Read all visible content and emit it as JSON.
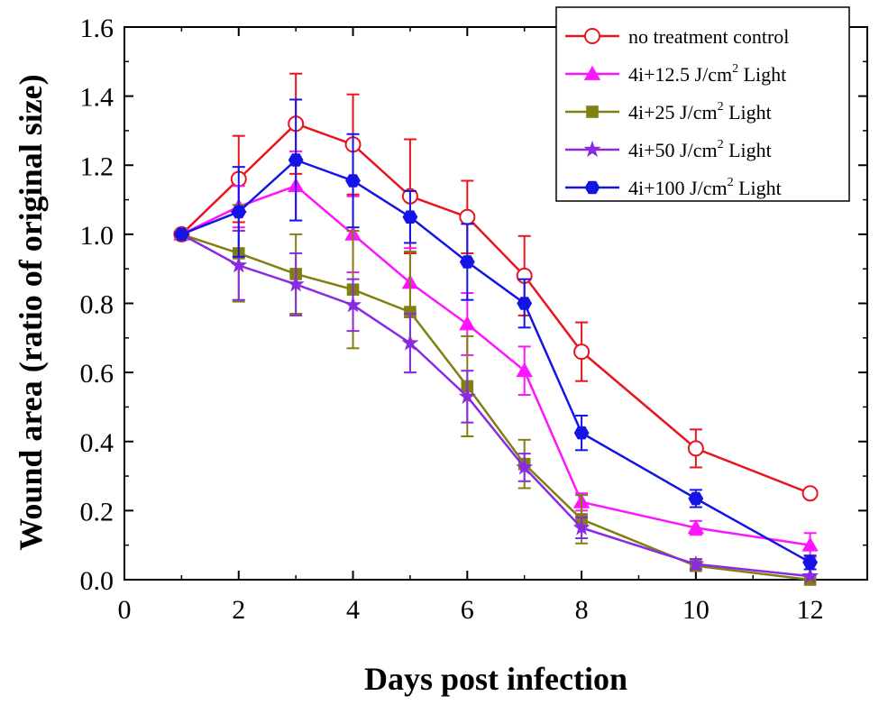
{
  "chart_data": {
    "type": "line",
    "title": "",
    "xlabel": "Days post infection",
    "ylabel": "Wound area (ratio of original size)",
    "xlim": [
      0,
      13
    ],
    "ylim": [
      0,
      1.6
    ],
    "xticks": [
      0,
      2,
      4,
      6,
      8,
      10,
      12
    ],
    "yticks": [
      0.0,
      0.2,
      0.4,
      0.6,
      0.8,
      1.0,
      1.2,
      1.4,
      1.6
    ],
    "xtick_labels": [
      "0",
      "2",
      "4",
      "6",
      "8",
      "10",
      "12"
    ],
    "ytick_labels": [
      "0.0",
      "0.2",
      "0.4",
      "0.6",
      "0.8",
      "1.0",
      "1.2",
      "1.4",
      "1.6"
    ],
    "legend_position": "top-right",
    "x": [
      1,
      2,
      3,
      4,
      5,
      6,
      7,
      8,
      10,
      12
    ],
    "series": [
      {
        "name": "no treatment control",
        "label_parts": {
          "main": "no treatment control",
          "sup": "",
          "tail": ""
        },
        "color": "#e8141e",
        "marker": "open-circle",
        "values": [
          1.0,
          1.16,
          1.32,
          1.26,
          1.11,
          1.05,
          0.88,
          0.66,
          0.38,
          0.25
        ],
        "errors": [
          0.01,
          0.125,
          0.145,
          0.145,
          0.165,
          0.105,
          0.115,
          0.085,
          0.055,
          0.01
        ]
      },
      {
        "name": "4i+12.5 J/cm2 Light",
        "label_parts": {
          "main": "4i+12.5 J/cm",
          "sup": "2",
          "tail": " Light"
        },
        "color": "#ff14ff",
        "marker": "triangle",
        "values": [
          1.0,
          1.08,
          1.14,
          1.0,
          0.86,
          0.74,
          0.605,
          0.225,
          0.15,
          0.1
        ],
        "errors": [
          0.01,
          0.06,
          0.1,
          0.11,
          0.1,
          0.09,
          0.07,
          0.025,
          0.02,
          0.035
        ]
      },
      {
        "name": "4i+25 J/cm2 Light",
        "label_parts": {
          "main": "4i+25 J/cm",
          "sup": "2",
          "tail": " Light"
        },
        "color": "#808012",
        "marker": "square",
        "values": [
          1.0,
          0.945,
          0.885,
          0.84,
          0.775,
          0.56,
          0.335,
          0.175,
          0.04,
          0.0
        ],
        "errors": [
          0.01,
          0.14,
          0.115,
          0.17,
          0.175,
          0.145,
          0.07,
          0.07,
          0.01,
          0.01
        ]
      },
      {
        "name": "4i+50 J/cm2 Light",
        "label_parts": {
          "main": "4i+50 J/cm",
          "sup": "2",
          "tail": " Light"
        },
        "color": "#8a2be2",
        "marker": "star",
        "values": [
          1.0,
          0.91,
          0.855,
          0.795,
          0.685,
          0.53,
          0.325,
          0.15,
          0.045,
          0.01
        ],
        "errors": [
          0.01,
          0.1,
          0.09,
          0.075,
          0.085,
          0.075,
          0.04,
          0.03,
          0.015,
          0.01
        ]
      },
      {
        "name": "4i+100 J/cm2 Light",
        "label_parts": {
          "main": "4i+100 J/cm",
          "sup": "2",
          "tail": " Light"
        },
        "color": "#1414e6",
        "marker": "hexagon",
        "values": [
          1.0,
          1.065,
          1.215,
          1.155,
          1.05,
          0.92,
          0.8,
          0.425,
          0.235,
          0.05
        ],
        "errors": [
          0.01,
          0.13,
          0.175,
          0.135,
          0.075,
          0.11,
          0.07,
          0.05,
          0.025,
          0.02
        ]
      }
    ]
  }
}
